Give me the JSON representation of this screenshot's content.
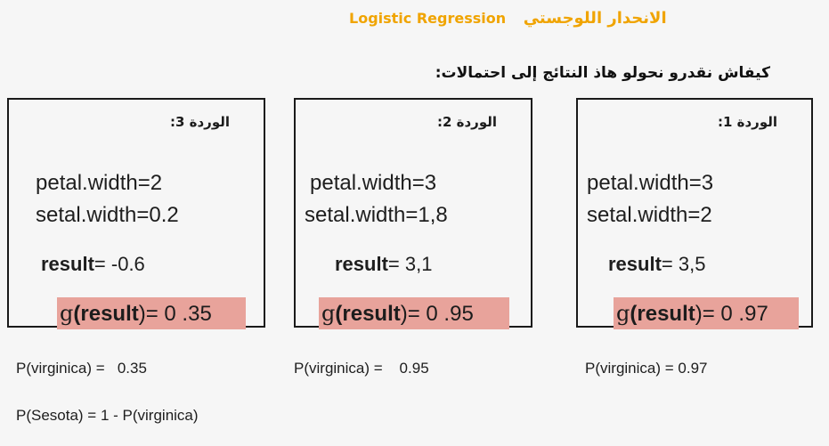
{
  "header": {
    "title_en": "Logistic Regression",
    "title_ar": "الانحدار اللوجستي",
    "title_color": "#f0a400"
  },
  "question": "كيفاش نقدرو نحولو هاذ النتائج إلى احتمالات:",
  "highlight_color": "#e8a39b",
  "flowers": {
    "three": {
      "label": "الوردة 3:",
      "petal": "petal.width=2",
      "setal": "setal.width=0.2",
      "result_key": "result",
      "result_value": "= -0.6",
      "g_prefix": "g",
      "g_open": "(",
      "g_key": "result",
      "g_value": ")= 0 .35"
    },
    "two": {
      "label": "الوردة 2:",
      "petal": "petal.width=3",
      "setal": "setal.width=1,8",
      "result_key": "result",
      "result_value": "= 3,1",
      "g_prefix": "g",
      "g_open": "(",
      "g_key": "result",
      "g_value": ")= 0 .95"
    },
    "one": {
      "label": "الوردة 1:",
      "petal": "petal.width=3",
      "setal": "setal.width=2",
      "result_key": "result",
      "result_value": "= 3,5",
      "g_prefix": "g",
      "g_open": "(",
      "g_key": "result",
      "g_value": ")= 0 .97"
    }
  },
  "probabilities": {
    "p3": "P(virginica) =   0.35",
    "p2": "P(virginica) =    0.95",
    "p1": "P(virginica) = 0.97",
    "sesota": "P(Sesota) = 1 - P(virginica)"
  }
}
